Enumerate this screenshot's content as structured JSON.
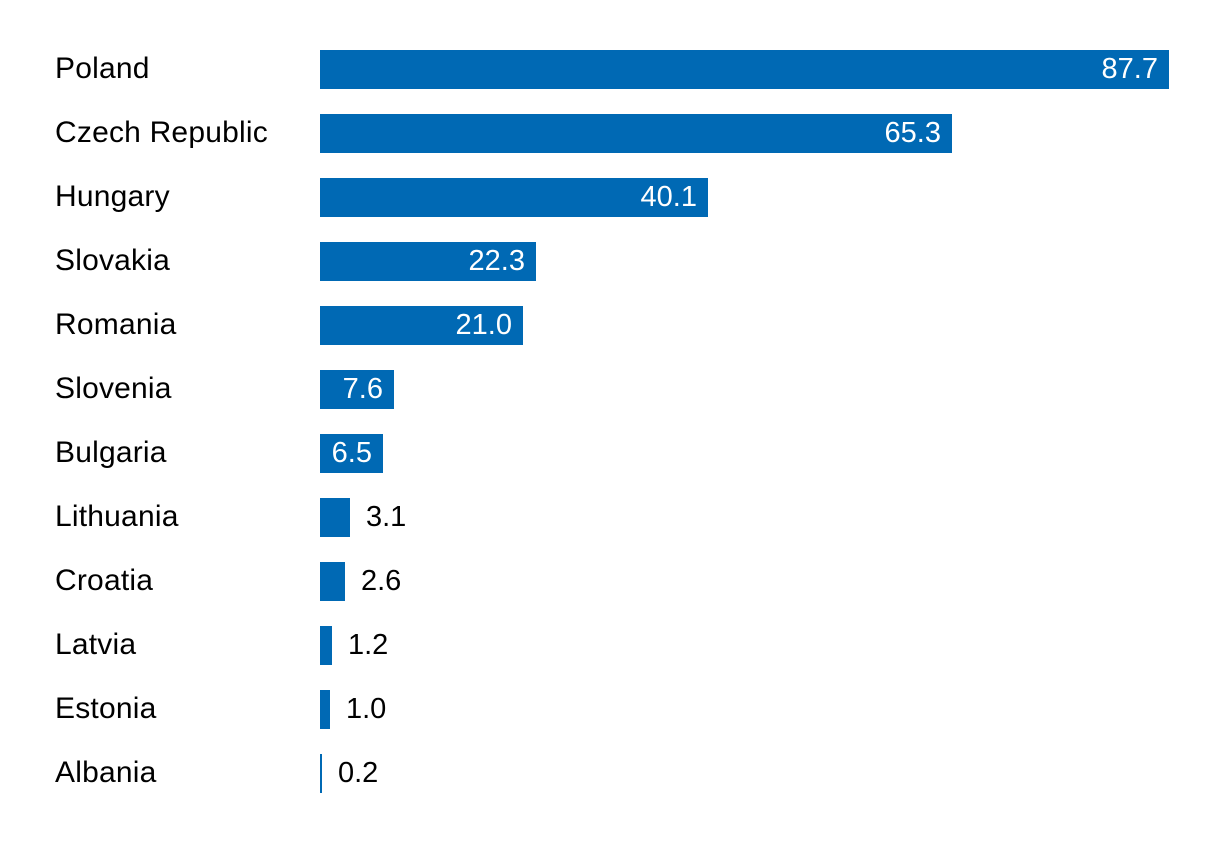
{
  "chart_data": {
    "type": "bar",
    "orientation": "horizontal",
    "title": "",
    "xlabel": "",
    "ylabel": "",
    "categories": [
      "Poland",
      "Czech Republic",
      "Hungary",
      "Slovakia",
      "Romania",
      "Slovenia",
      "Bulgaria",
      "Lithuania",
      "Croatia",
      "Latvia",
      "Estonia",
      "Albania"
    ],
    "values": [
      87.7,
      65.3,
      40.1,
      22.3,
      21.0,
      7.6,
      6.5,
      3.1,
      2.6,
      1.2,
      1.0,
      0.2
    ],
    "value_labels": [
      "87.7",
      "65.3",
      "40.1",
      "22.3",
      "21.0",
      "7.6",
      "6.5",
      "3.1",
      "2.6",
      "1.2",
      "1.0",
      "0.2"
    ],
    "xlim": [
      0,
      92
    ],
    "grid": false,
    "legend": null,
    "bar_color": "#0069b4",
    "inside_label_color": "#ffffff",
    "outside_label_color": "#000000",
    "background_color": "#ffffff"
  }
}
